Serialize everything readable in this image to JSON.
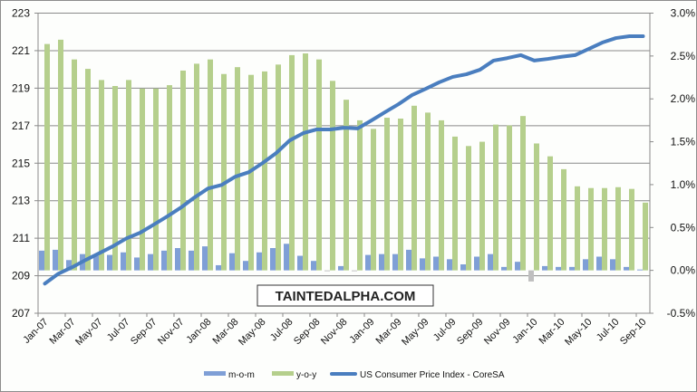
{
  "chart_data": {
    "type": "bar",
    "title": "",
    "watermark": "TAINTEDALPHA.COM",
    "categories": [
      "Jan-07",
      "Feb-07",
      "Mar-07",
      "Apr-07",
      "May-07",
      "Jun-07",
      "Jul-07",
      "Aug-07",
      "Sep-07",
      "Oct-07",
      "Nov-07",
      "Dec-07",
      "Jan-08",
      "Feb-08",
      "Mar-08",
      "Apr-08",
      "May-08",
      "Jun-08",
      "Jul-08",
      "Aug-08",
      "Sep-08",
      "Oct-08",
      "Nov-08",
      "Dec-08",
      "Jan-09",
      "Feb-09",
      "Mar-09",
      "Apr-09",
      "May-09",
      "Jun-09",
      "Jul-09",
      "Aug-09",
      "Sep-09",
      "Oct-09",
      "Nov-09",
      "Dec-09",
      "Jan-10",
      "Feb-10",
      "Mar-10",
      "Apr-10",
      "May-10",
      "Jun-10",
      "Jul-10",
      "Aug-10",
      "Sep-10"
    ],
    "left_axis": {
      "ylim": [
        207,
        223
      ],
      "ticks": [
        "207",
        "209",
        "211",
        "213",
        "215",
        "217",
        "219",
        "221",
        "223"
      ]
    },
    "right_axis": {
      "ylim": [
        -0.5,
        3.0
      ],
      "ticks": [
        "-0.5%",
        "0.0%",
        "0.5%",
        "1.0%",
        "1.5%",
        "2.0%",
        "2.5%",
        "3.0%"
      ]
    },
    "grid": true,
    "legend_position": "bottom",
    "series": [
      {
        "name": "m-o-m",
        "type": "bar",
        "axis": "right",
        "unit": "%",
        "color": "#7f9fd6",
        "values": [
          0.23,
          0.24,
          0.12,
          0.19,
          0.17,
          0.18,
          0.21,
          0.15,
          0.19,
          0.23,
          0.26,
          0.23,
          0.28,
          0.06,
          0.2,
          0.11,
          0.21,
          0.26,
          0.31,
          0.17,
          0.11,
          -0.01,
          0.05,
          -0.01,
          0.18,
          0.19,
          0.19,
          0.24,
          0.14,
          0.16,
          0.13,
          0.07,
          0.16,
          0.19,
          0.04,
          0.1,
          -0.13,
          0.05,
          0.04,
          0.04,
          0.13,
          0.16,
          0.13,
          0.04,
          0.01
        ]
      },
      {
        "name": "y-o-y",
        "type": "bar",
        "axis": "right",
        "unit": "%",
        "color": "#b5cf8c",
        "values": [
          2.64,
          2.69,
          2.46,
          2.35,
          2.22,
          2.15,
          2.22,
          2.12,
          2.12,
          2.16,
          2.33,
          2.41,
          2.46,
          2.29,
          2.37,
          2.28,
          2.32,
          2.4,
          2.51,
          2.53,
          2.46,
          2.21,
          1.99,
          1.75,
          1.65,
          1.78,
          1.77,
          1.92,
          1.84,
          1.75,
          1.56,
          1.45,
          1.5,
          1.7,
          1.69,
          1.8,
          1.48,
          1.33,
          1.18,
          0.98,
          0.96,
          0.96,
          0.97,
          0.95,
          0.79
        ]
      },
      {
        "name": "US Consumer Price Index - CoreSA",
        "type": "line",
        "axis": "left",
        "color": "#4a7ebf",
        "values": [
          208.58,
          209.11,
          209.45,
          209.84,
          210.2,
          210.57,
          210.99,
          211.29,
          211.72,
          212.16,
          212.63,
          213.17,
          213.65,
          213.84,
          214.28,
          214.52,
          215.0,
          215.53,
          216.21,
          216.6,
          216.8,
          216.8,
          216.89,
          216.85,
          217.27,
          217.71,
          218.14,
          218.63,
          218.96,
          219.31,
          219.6,
          219.74,
          219.98,
          220.47,
          220.6,
          220.76,
          220.47,
          220.56,
          220.67,
          220.76,
          221.09,
          221.43,
          221.67,
          221.77,
          221.77
        ]
      }
    ],
    "negative_bar_color": "#bfbfbf"
  }
}
